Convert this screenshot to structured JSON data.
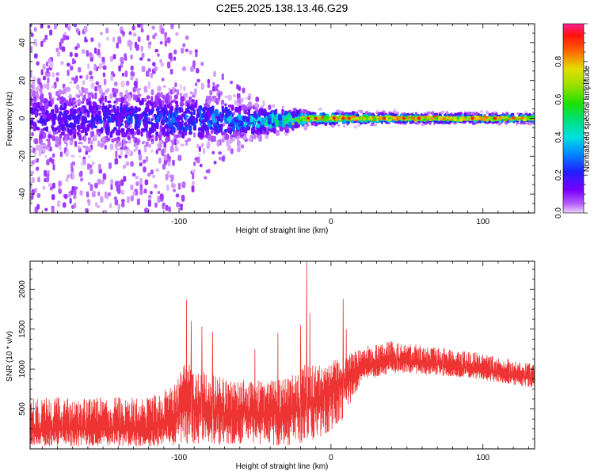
{
  "figure_title": "C2E5.2025.138.13.46.G29",
  "colors": {
    "snr_line": "#ee3333",
    "axis": "#000000",
    "background": "#ffffff"
  },
  "chart_data": [
    {
      "type": "heatmap",
      "title": "C2E5.2025.138.13.46.G29",
      "xlabel": "Height of straight line (km)",
      "ylabel": "Frequency (Hz)",
      "xlim": [
        -198,
        134
      ],
      "ylim": [
        -50,
        50
      ],
      "x_ticks": [
        -100,
        0,
        100
      ],
      "y_ticks": [
        -40,
        -20,
        0,
        20,
        40
      ],
      "colorbar": {
        "label": "Normalized spectral amplitude",
        "range": [
          0,
          1
        ],
        "ticks": [
          0.0,
          0.2,
          0.4,
          0.6,
          0.8
        ],
        "colormap": "rainbow: magenta-purple (0) → blue → cyan → green → yellow → red → pink (1)"
      },
      "description_points": [
        {
          "x": -198,
          "center_freq": 0,
          "band_halfwidth_hz": 10,
          "peak_amplitude": 0.2
        },
        {
          "x": -100,
          "center_freq": 0,
          "band_halfwidth_hz": 8,
          "peak_amplitude": 0.35
        },
        {
          "x": -50,
          "center_freq": -2,
          "band_halfwidth_hz": 5,
          "peak_amplitude": 0.45
        },
        {
          "x": -15,
          "center_freq": 0,
          "band_halfwidth_hz": 2,
          "peak_amplitude": 0.9
        },
        {
          "x": 0,
          "center_freq": 0,
          "band_halfwidth_hz": 2,
          "peak_amplitude": 0.9
        },
        {
          "x": 50,
          "center_freq": 0,
          "band_halfwidth_hz": 1.5,
          "peak_amplitude": 0.85
        },
        {
          "x": 134,
          "center_freq": 0,
          "band_halfwidth_hz": 1.5,
          "peak_amplitude": 0.9
        }
      ]
    },
    {
      "type": "line",
      "xlabel": "Height of straight line (km)",
      "ylabel": "SNR (10 * v/v)",
      "xlim": [
        -198,
        134
      ],
      "ylim": [
        0,
        2350
      ],
      "x_ticks": [
        -100,
        0,
        100
      ],
      "y_ticks": [
        500,
        1000,
        1500,
        2000
      ],
      "series": [
        {
          "color": "#ee3333",
          "envelope": {
            "x": [
              -198,
              -160,
              -120,
              -105,
              -95,
              -85,
              -70,
              -50,
              -30,
              -20,
              -15,
              -10,
              0,
              10,
              20,
              40,
              60,
              80,
              100,
              120,
              134
            ],
            "mean": [
              250,
              250,
              250,
              350,
              550,
              500,
              450,
              450,
              450,
              500,
              550,
              600,
              750,
              850,
              1000,
              1120,
              1080,
              1030,
              980,
              920,
              870
            ],
            "low": [
              30,
              30,
              30,
              40,
              60,
              60,
              50,
              40,
              40,
              60,
              60,
              100,
              200,
              400,
              850,
              950,
              930,
              900,
              860,
              800,
              760
            ],
            "high": [
              650,
              650,
              650,
              800,
              1100,
              1000,
              900,
              850,
              900,
              1000,
              1100,
              1050,
              1100,
              1150,
              1300,
              1350,
              1300,
              1250,
              1200,
              1120,
              1050
            ]
          },
          "spikes": [
            {
              "x": -95,
              "y": 1870
            },
            {
              "x": -92,
              "y": 1600
            },
            {
              "x": -85,
              "y": 1530
            },
            {
              "x": -78,
              "y": 1470
            },
            {
              "x": -50,
              "y": 1250
            },
            {
              "x": -35,
              "y": 1450
            },
            {
              "x": -20,
              "y": 1550
            },
            {
              "x": -16,
              "y": 2350
            },
            {
              "x": -14,
              "y": 1700
            },
            {
              "x": 8,
              "y": 1880
            },
            {
              "x": 10,
              "y": 1500
            }
          ]
        }
      ]
    }
  ]
}
